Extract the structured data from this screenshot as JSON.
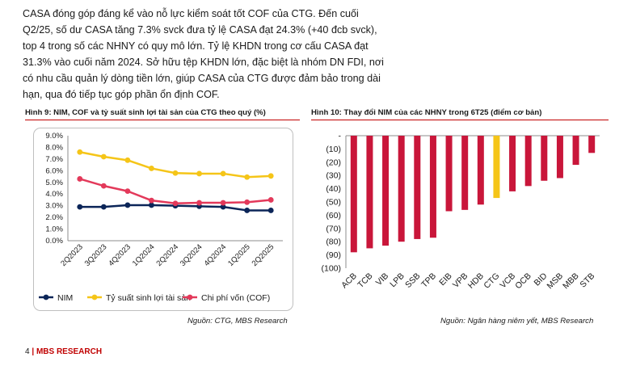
{
  "paragraph": [
    "CASA đóng góp đáng kể vào nỗ lực kiểm soát tốt COF của CTG. Đến cuối",
    "Q2/25, số dư CASA tăng 7.3% svck đưa tỷ lệ CASA đạt 24.3% (+40 đcb svck),",
    "top 4 trong số các NHNY có quy mô lớn. Tỷ lệ KHDN trong cơ cấu CASA đạt",
    "31.3% vào cuối năm 2024. Sở hữu tệp KHDN lớn, đặc biệt là nhóm DN FDI, nơi",
    "có nhu cầu quản lý dòng tiền lớn, giúp CASA của CTG được đảm bảo trong dài",
    "hạn, qua đó tiếp tục góp phần ổn định COF."
  ],
  "figure9": {
    "title": "Hình 9: NIM, COF và tỷ suất sinh lợi tài sản của CTG theo quý (%)",
    "source": "Nguồn: CTG, MBS Research"
  },
  "figure10": {
    "title": "Hình 10: Thay đổi NIM của các NHNY trong 6T25 (điểm cơ bản)",
    "source": "Nguồn: Ngân hàng niêm yết, MBS Research"
  },
  "footer": {
    "page": "4",
    "separator": "|",
    "brand": "MBS RESEARCH"
  },
  "chart_data": [
    {
      "type": "line",
      "x": [
        "2Q2023",
        "3Q2023",
        "4Q2023",
        "1Q2024",
        "2Q2024",
        "3Q2024",
        "4Q2024",
        "1Q2025",
        "2Q2025"
      ],
      "yticks": [
        "9.0%",
        "8.0%",
        "7.0%",
        "6.0%",
        "5.0%",
        "4.0%",
        "3.0%",
        "2.0%",
        "1.0%",
        "0.0%"
      ],
      "ylim": [
        0,
        9
      ],
      "legend_position": "bottom",
      "series": [
        {
          "name": "NIM",
          "color": "#0b2558",
          "values": [
            2.9,
            2.9,
            3.05,
            3.05,
            3.0,
            2.95,
            2.9,
            2.6,
            2.6
          ]
        },
        {
          "name": "Tỷ suất sinh lợi tài sản",
          "color": "#f5c518",
          "values": [
            7.6,
            7.2,
            6.9,
            6.2,
            5.8,
            5.75,
            5.75,
            5.45,
            5.55
          ]
        },
        {
          "name": "Chi phí vốn (COF)",
          "color": "#e3395a",
          "values": [
            5.3,
            4.7,
            4.25,
            3.45,
            3.2,
            3.25,
            3.25,
            3.3,
            3.5
          ]
        }
      ]
    },
    {
      "type": "bar",
      "categories": [
        "ACB",
        "TCB",
        "VIB",
        "LPB",
        "SSB",
        "TPB",
        "EIB",
        "VPB",
        "HDB",
        "CTG",
        "VCB",
        "OCB",
        "BID",
        "MSB",
        "MBB",
        "STB"
      ],
      "values": [
        -88,
        -85,
        -83,
        -80,
        -78,
        -77,
        -57,
        -56,
        -52,
        -47,
        -42,
        -38,
        -34,
        -32,
        -22,
        -13
      ],
      "yticks": [
        "-",
        "(10)",
        "(20)",
        "(30)",
        "(40)",
        "(50)",
        "(60)",
        "(70)",
        "(80)",
        "(90)",
        "(100)"
      ],
      "ylim": [
        -100,
        0
      ],
      "bar_color": "#c9163a",
      "highlight": {
        "category": "CTG",
        "color": "#f5c518"
      }
    }
  ]
}
